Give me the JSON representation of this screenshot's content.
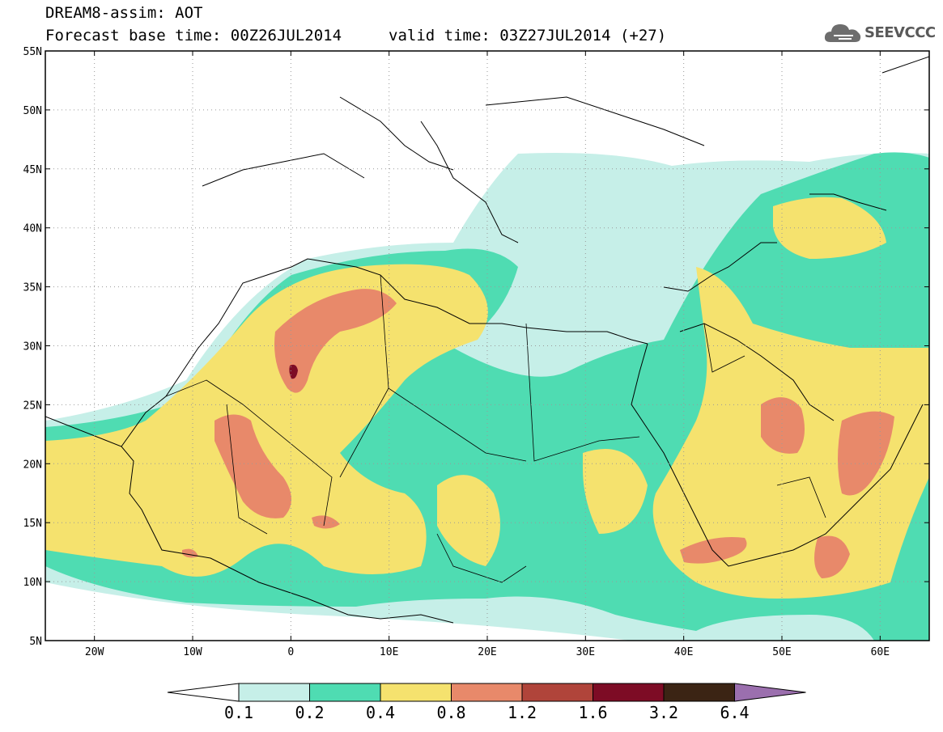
{
  "header": {
    "line1": "DREAM8-assim: AOT",
    "line2": "Forecast base time: 00Z26JUL2014",
    "line3": "valid time: 03Z27JUL2014 (+27)"
  },
  "logo": {
    "text": "SEEVCCC",
    "icon": "cloud-icon"
  },
  "map": {
    "lon_range": [
      -25,
      65
    ],
    "lat_range": [
      5,
      55
    ],
    "lat_ticks": [
      "55N",
      "50N",
      "45N",
      "40N",
      "35N",
      "30N",
      "25N",
      "20N",
      "15N",
      "10N",
      "5N"
    ],
    "lon_ticks": [
      "20W",
      "10W",
      "0",
      "10E",
      "20E",
      "30E",
      "40E",
      "50E",
      "60E"
    ],
    "grid": "dotted"
  },
  "colorbar": {
    "levels": [
      "0.1",
      "0.2",
      "0.4",
      "0.8",
      "1.2",
      "1.6",
      "3.2",
      "6.4"
    ],
    "colors": [
      "#ffffff",
      "#c6efe8",
      "#4fdcb2",
      "#f5e26e",
      "#e8896a",
      "#b0443a",
      "#7d0c25",
      "#3b2414",
      "#9b6fae"
    ]
  }
}
